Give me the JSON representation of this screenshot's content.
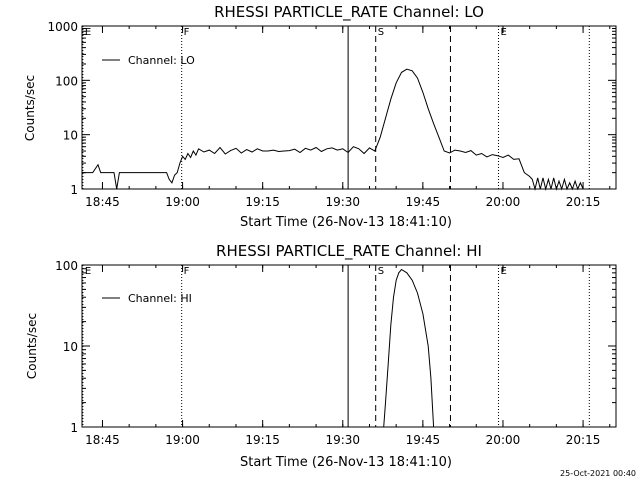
{
  "footer": {
    "timestamp": "25-Oct-2021 00:40"
  },
  "chart_data": [
    {
      "type": "line",
      "title": "RHESSI PARTICLE_RATE Channel: LO",
      "xlabel": "Start Time (26-Nov-13 18:41:10)",
      "ylabel": "Counts/sec",
      "x_ticks": [
        "18:45",
        "19:00",
        "19:15",
        "19:30",
        "19:45",
        "20:00",
        "20:15"
      ],
      "y_ticks": [
        "1",
        "10",
        "100",
        "1000"
      ],
      "y_scale": "log",
      "ylim": [
        1,
        1000
      ],
      "xlim": [
        "18:41:10",
        "20:21:10"
      ],
      "legend": {
        "label": "Channel: LO",
        "placement": "top-left"
      },
      "markers": [
        {
          "label": "E",
          "time": "18:41:20",
          "style": "dotted"
        },
        {
          "label": "F",
          "time": "18:59:50",
          "style": "dotted"
        },
        {
          "label": "",
          "time": "19:31:00",
          "style": "solid"
        },
        {
          "label": "S",
          "time": "19:36:10",
          "style": "dashed"
        },
        {
          "label": "",
          "time": "19:50:10",
          "style": "dashed"
        },
        {
          "label": "E",
          "time": "19:59:10",
          "style": "dotted"
        },
        {
          "label": "",
          "time": "20:16:10",
          "style": "dotted"
        }
      ],
      "series": [
        {
          "name": "Channel: LO",
          "x": [
            "18:41:10",
            "18:43:10",
            "18:44:10",
            "18:44:40",
            "18:45:10",
            "18:47:10",
            "18:47:40",
            "18:48:10",
            "18:52:00",
            "18:57:00",
            "18:57:30",
            "18:58:00",
            "18:58:30",
            "18:59:00",
            "18:59:30",
            "19:00:00",
            "19:00:30",
            "19:01:00",
            "19:01:30",
            "19:02:00",
            "19:02:30",
            "19:03:00",
            "19:04:00",
            "19:05:00",
            "19:06:00",
            "19:07:00",
            "19:08:00",
            "19:09:00",
            "19:10:00",
            "19:11:00",
            "19:12:00",
            "19:13:00",
            "19:14:00",
            "19:15:00",
            "19:16:00",
            "19:17:00",
            "19:18:00",
            "19:19:00",
            "19:20:00",
            "19:21:00",
            "19:22:00",
            "19:23:00",
            "19:24:00",
            "19:25:00",
            "19:26:00",
            "19:27:00",
            "19:28:00",
            "19:29:00",
            "19:30:00",
            "19:31:00",
            "19:32:00",
            "19:33:00",
            "19:34:00",
            "19:35:00",
            "19:36:00",
            "19:37:00",
            "19:38:00",
            "19:39:00",
            "19:40:00",
            "19:41:00",
            "19:42:00",
            "19:43:00",
            "19:44:00",
            "19:45:00",
            "19:46:00",
            "19:47:00",
            "19:48:00",
            "19:49:00",
            "19:50:00",
            "19:51:00",
            "19:52:00",
            "19:53:00",
            "19:54:00",
            "19:55:00",
            "19:56:00",
            "19:57:00",
            "19:58:00",
            "19:59:00",
            "20:00:00",
            "20:01:00",
            "20:02:00",
            "20:03:00",
            "20:04:00",
            "20:05:00",
            "20:05:30",
            "20:06:00",
            "20:06:30",
            "20:07:00",
            "20:07:30",
            "20:08:00",
            "20:08:30",
            "20:09:00",
            "20:09:30",
            "20:10:00",
            "20:10:30",
            "20:11:00",
            "20:11:30",
            "20:12:00",
            "20:12:30",
            "20:13:00",
            "20:13:30",
            "20:14:00",
            "20:14:30",
            "20:15:00",
            "20:16:00"
          ],
          "y": [
            2,
            2,
            2.8,
            2,
            2,
            2,
            1,
            2,
            2,
            2,
            1.5,
            1.3,
            1.8,
            2,
            3,
            4,
            3.5,
            4.5,
            3.8,
            5,
            4.2,
            5.5,
            4.8,
            5.2,
            4.5,
            5.8,
            4.4,
            5.1,
            5.6,
            4.6,
            5.3,
            4.8,
            5.5,
            5,
            5,
            5.2,
            4.9,
            5,
            5.1,
            5.4,
            4.7,
            5.6,
            5.2,
            5.8,
            4.9,
            5.5,
            5.7,
            5.2,
            5.5,
            4.7,
            6,
            5.5,
            4.5,
            5.7,
            5,
            9,
            20,
            45,
            90,
            140,
            160,
            150,
            110,
            60,
            30,
            16,
            9,
            5,
            4.6,
            5.2,
            5,
            4.7,
            5.1,
            4.2,
            4.5,
            3.9,
            4.3,
            4.1,
            3.8,
            4.2,
            3.5,
            3.6,
            2,
            1.7,
            1.5,
            1,
            1.6,
            1,
            1.6,
            1,
            1.5,
            1,
            1.6,
            1,
            1.4,
            1,
            1.5,
            1,
            1.3,
            1,
            1.4,
            1,
            1.3,
            1,
            1
          ]
        }
      ]
    },
    {
      "type": "line",
      "title": "RHESSI PARTICLE_RATE Channel: HI",
      "xlabel": "Start Time (26-Nov-13 18:41:10)",
      "ylabel": "Counts/sec",
      "x_ticks": [
        "18:45",
        "19:00",
        "19:15",
        "19:30",
        "19:45",
        "20:00",
        "20:15"
      ],
      "y_ticks": [
        "1",
        "10",
        "100"
      ],
      "y_scale": "log",
      "ylim": [
        1,
        100
      ],
      "xlim": [
        "18:41:10",
        "20:21:10"
      ],
      "legend": {
        "label": "Channel: HI",
        "placement": "top-left"
      },
      "markers": [
        {
          "label": "E",
          "time": "18:41:20",
          "style": "dotted"
        },
        {
          "label": "F",
          "time": "18:59:50",
          "style": "dotted"
        },
        {
          "label": "",
          "time": "19:31:00",
          "style": "solid"
        },
        {
          "label": "S",
          "time": "19:36:10",
          "style": "dashed"
        },
        {
          "label": "",
          "time": "19:50:10",
          "style": "dashed"
        },
        {
          "label": "E",
          "time": "19:59:10",
          "style": "dotted"
        },
        {
          "label": "",
          "time": "20:16:10",
          "style": "dotted"
        }
      ],
      "series": [
        {
          "name": "Channel: HI",
          "x": [
            "19:37:40",
            "19:38:00",
            "19:38:30",
            "19:39:00",
            "19:39:30",
            "19:40:00",
            "19:40:30",
            "19:41:00",
            "19:42:00",
            "19:43:00",
            "19:44:00",
            "19:45:00",
            "19:46:00",
            "19:46:30",
            "19:47:00"
          ],
          "y": [
            1,
            2,
            6,
            18,
            40,
            65,
            80,
            88,
            80,
            65,
            45,
            25,
            10,
            4,
            1
          ]
        }
      ]
    }
  ]
}
